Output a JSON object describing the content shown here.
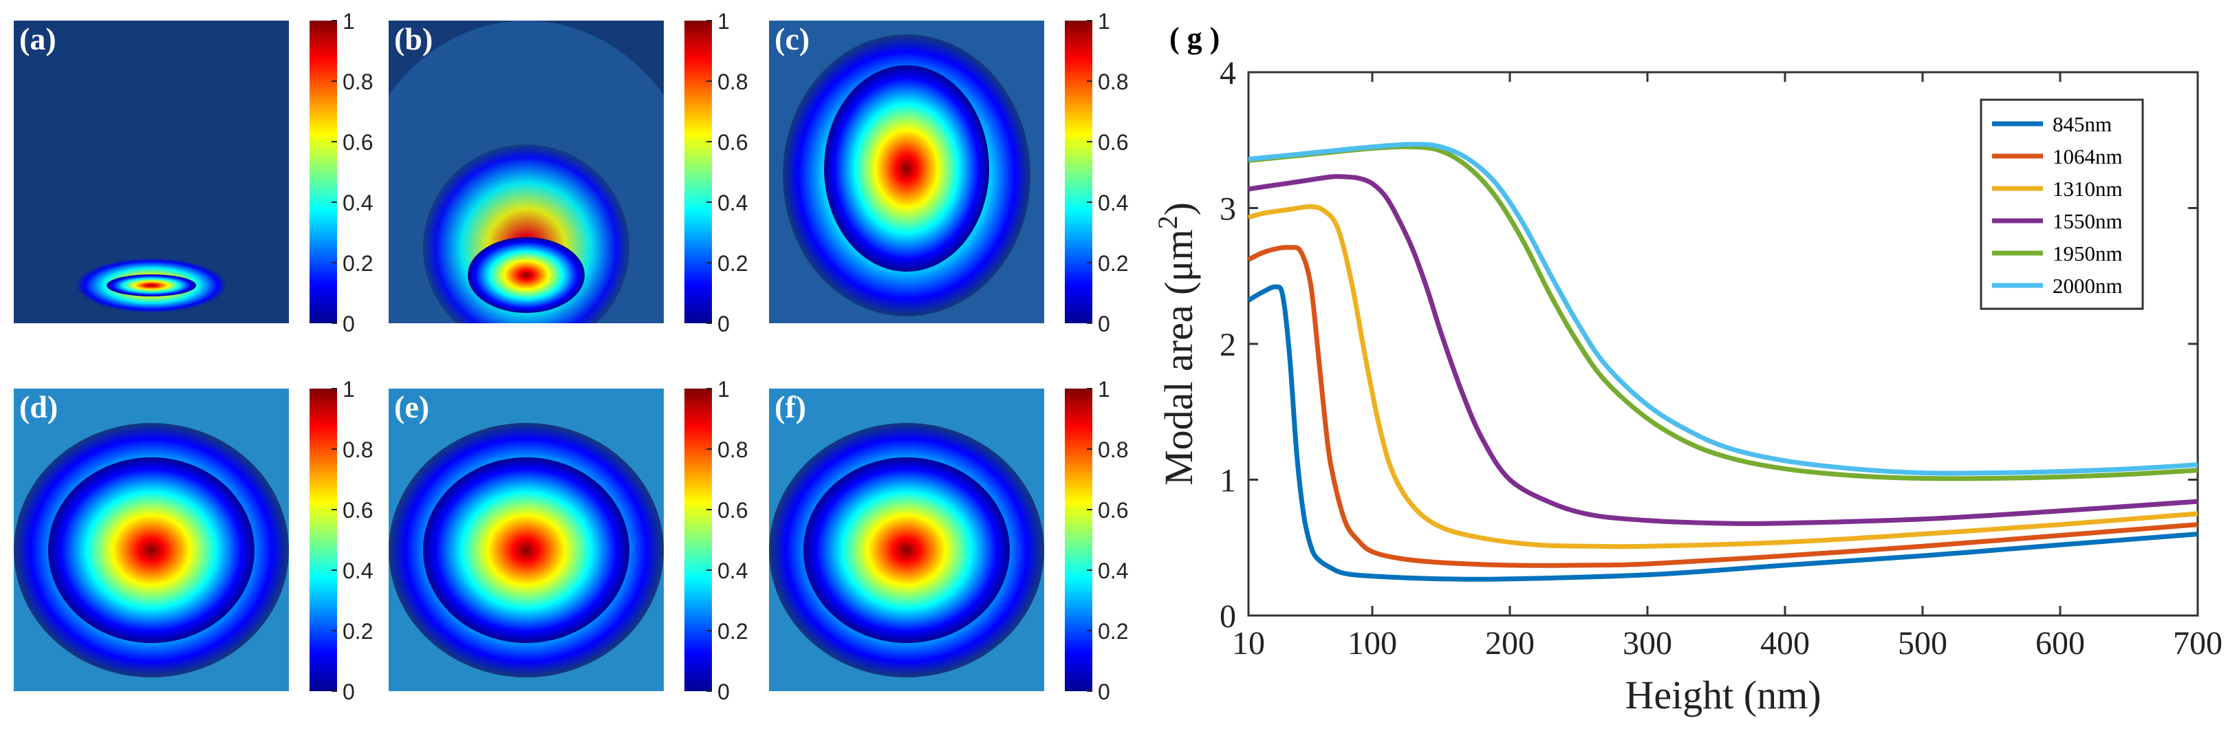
{
  "figure": {
    "panels": [
      {
        "label": "(a)",
        "mode": "confined-bottom"
      },
      {
        "label": "(b)",
        "mode": "partial-bottom"
      },
      {
        "label": "(c)",
        "mode": "drop"
      },
      {
        "label": "(d)",
        "mode": "round"
      },
      {
        "label": "(e)",
        "mode": "round"
      },
      {
        "label": "(f)",
        "mode": "round"
      }
    ],
    "colorbar": {
      "ticks": [
        "1",
        "0.8",
        "0.6",
        "0.4",
        "0.2",
        "0"
      ],
      "colors": [
        "#800000",
        "#ff0000",
        "#ff8000",
        "#ffff00",
        "#80ff80",
        "#00ffff",
        "#0080ff",
        "#0000ff",
        "#00008f"
      ],
      "background": "#143a78"
    }
  },
  "chart_data": {
    "type": "line",
    "panel_label": "( g )",
    "xlabel": "Height (nm)",
    "ylabel": "Modal area (μm",
    "ylabel_sup": "2",
    "ylabel_close": ")",
    "xlim": [
      10,
      700
    ],
    "ylim": [
      0,
      4
    ],
    "xticks": [
      10,
      100,
      200,
      300,
      400,
      500,
      600,
      700
    ],
    "xtick_labels": [
      "10",
      "100",
      "200",
      "300",
      "400",
      "500",
      "600",
      "700"
    ],
    "yticks": [
      0,
      1,
      2,
      3,
      4
    ],
    "ytick_labels": [
      "0",
      "1",
      "2",
      "3",
      "4"
    ],
    "legend_position": "top-right",
    "series": [
      {
        "name": "845nm",
        "color": "#0072BD",
        "x": [
          10,
          20,
          30,
          35,
          40,
          45,
          50,
          55,
          60,
          70,
          80,
          100,
          150,
          200,
          300,
          400,
          500,
          600,
          700
        ],
        "y": [
          2.32,
          2.38,
          2.42,
          2.35,
          1.9,
          1.2,
          0.75,
          0.52,
          0.42,
          0.35,
          0.31,
          0.29,
          0.27,
          0.27,
          0.3,
          0.37,
          0.44,
          0.52,
          0.6
        ]
      },
      {
        "name": "1064nm",
        "color": "#D95319",
        "x": [
          10,
          20,
          30,
          40,
          48,
          55,
          60,
          65,
          70,
          80,
          90,
          100,
          120,
          150,
          200,
          250,
          300,
          400,
          500,
          600,
          700
        ],
        "y": [
          2.62,
          2.67,
          2.7,
          2.71,
          2.68,
          2.45,
          2.0,
          1.5,
          1.1,
          0.7,
          0.55,
          0.47,
          0.42,
          0.39,
          0.37,
          0.37,
          0.38,
          0.44,
          0.51,
          0.59,
          0.67
        ]
      },
      {
        "name": "1310nm",
        "color": "#EDB120",
        "x": [
          10,
          20,
          40,
          55,
          65,
          75,
          85,
          95,
          105,
          115,
          130,
          150,
          180,
          220,
          260,
          300,
          400,
          500,
          600,
          700
        ],
        "y": [
          2.93,
          2.96,
          2.99,
          3.01,
          2.98,
          2.85,
          2.45,
          1.9,
          1.4,
          1.05,
          0.8,
          0.65,
          0.57,
          0.52,
          0.51,
          0.51,
          0.54,
          0.6,
          0.67,
          0.75
        ]
      },
      {
        "name": "1550nm",
        "color": "#7E2F8E",
        "x": [
          10,
          30,
          50,
          70,
          80,
          90,
          100,
          110,
          120,
          130,
          140,
          150,
          165,
          180,
          200,
          230,
          260,
          300,
          350,
          400,
          500,
          600,
          700
        ],
        "y": [
          3.14,
          3.17,
          3.2,
          3.23,
          3.23,
          3.22,
          3.18,
          3.08,
          2.9,
          2.68,
          2.4,
          2.08,
          1.65,
          1.3,
          1.0,
          0.83,
          0.74,
          0.7,
          0.68,
          0.68,
          0.71,
          0.77,
          0.84
        ]
      },
      {
        "name": "1950nm",
        "color": "#77AC30",
        "x": [
          10,
          50,
          100,
          130,
          150,
          170,
          190,
          210,
          230,
          250,
          270,
          300,
          330,
          360,
          400,
          450,
          500,
          550,
          600,
          650,
          700
        ],
        "y": [
          3.35,
          3.39,
          3.44,
          3.45,
          3.42,
          3.3,
          3.08,
          2.75,
          2.35,
          2.0,
          1.72,
          1.45,
          1.27,
          1.16,
          1.08,
          1.03,
          1.01,
          1.01,
          1.02,
          1.04,
          1.07
        ]
      },
      {
        "name": "2000nm",
        "color": "#4DBEEE",
        "x": [
          10,
          50,
          100,
          130,
          150,
          170,
          190,
          210,
          230,
          250,
          270,
          300,
          330,
          360,
          400,
          450,
          500,
          550,
          600,
          650,
          700
        ],
        "y": [
          3.36,
          3.4,
          3.45,
          3.47,
          3.45,
          3.36,
          3.18,
          2.88,
          2.5,
          2.14,
          1.84,
          1.55,
          1.36,
          1.23,
          1.14,
          1.08,
          1.05,
          1.05,
          1.06,
          1.08,
          1.11
        ]
      }
    ]
  }
}
